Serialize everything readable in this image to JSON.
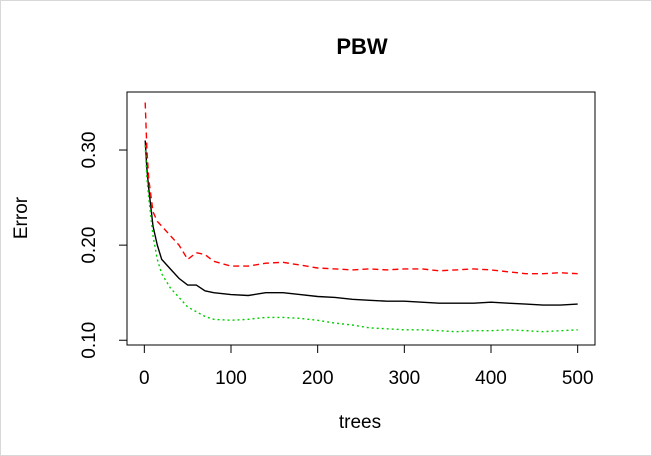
{
  "chart_data": {
    "type": "line",
    "title": "PBW",
    "xlabel": "trees",
    "ylabel": "Error",
    "x": [
      1,
      3,
      5,
      10,
      15,
      20,
      30,
      40,
      50,
      60,
      70,
      80,
      100,
      120,
      140,
      160,
      180,
      200,
      220,
      240,
      260,
      280,
      300,
      320,
      340,
      360,
      380,
      400,
      420,
      440,
      460,
      480,
      500
    ],
    "series": [
      {
        "color": "#000000",
        "dash": "solid",
        "values": [
          0.31,
          0.28,
          0.26,
          0.22,
          0.2,
          0.185,
          0.175,
          0.165,
          0.158,
          0.158,
          0.152,
          0.15,
          0.148,
          0.147,
          0.15,
          0.15,
          0.148,
          0.146,
          0.145,
          0.143,
          0.142,
          0.141,
          0.141,
          0.14,
          0.139,
          0.139,
          0.139,
          0.14,
          0.139,
          0.138,
          0.137,
          0.137,
          0.138
        ]
      },
      {
        "color": "#ff0000",
        "dash": "dashed",
        "values": [
          0.35,
          0.3,
          0.27,
          0.235,
          0.225,
          0.22,
          0.21,
          0.2,
          0.185,
          0.192,
          0.19,
          0.183,
          0.178,
          0.178,
          0.181,
          0.182,
          0.179,
          0.176,
          0.175,
          0.174,
          0.175,
          0.174,
          0.175,
          0.175,
          0.173,
          0.174,
          0.175,
          0.174,
          0.172,
          0.17,
          0.17,
          0.171,
          0.17
        ]
      },
      {
        "color": "#00cd00",
        "dash": "dotted",
        "values": [
          0.305,
          0.27,
          0.25,
          0.21,
          0.185,
          0.17,
          0.155,
          0.145,
          0.135,
          0.13,
          0.125,
          0.122,
          0.121,
          0.122,
          0.124,
          0.124,
          0.123,
          0.121,
          0.118,
          0.116,
          0.113,
          0.112,
          0.111,
          0.111,
          0.11,
          0.109,
          0.11,
          0.11,
          0.111,
          0.11,
          0.109,
          0.11,
          0.111
        ]
      }
    ],
    "xlim": [
      -20,
      520
    ],
    "xticks": [
      0,
      100,
      200,
      300,
      400,
      500
    ],
    "ylim": [
      0.095,
      0.361
    ],
    "yticks": [
      {
        "value": 0.1,
        "label": "0.10"
      },
      {
        "value": 0.2,
        "label": "0.20"
      },
      {
        "value": 0.3,
        "label": "0.30"
      }
    ]
  }
}
